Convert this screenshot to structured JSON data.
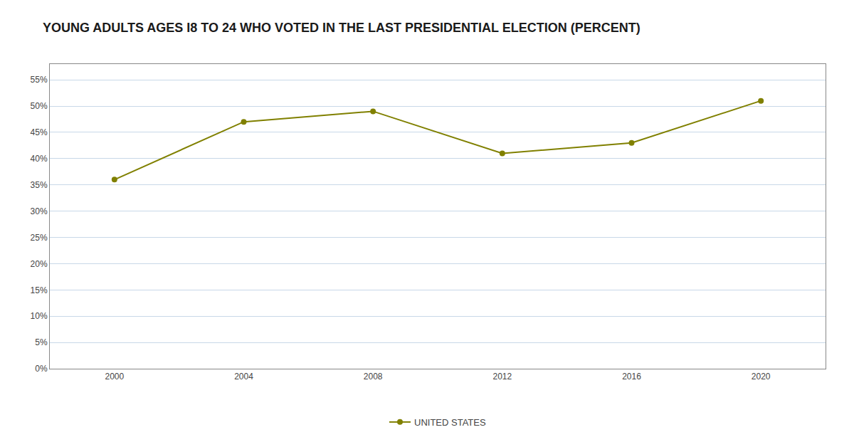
{
  "chart_data": {
    "type": "line",
    "title": "YOUNG ADULTS AGES I8 TO 24 WHO VOTED IN THE LAST PRESIDENTIAL ELECTION (PERCENT)",
    "x": [
      2000,
      2004,
      2008,
      2012,
      2016,
      2020
    ],
    "series": [
      {
        "name": "UNITED STATES",
        "color": "#808000",
        "marker": "circle",
        "values": [
          36,
          47,
          49,
          41,
          43,
          51
        ]
      }
    ],
    "xlim": [
      1998,
      2022
    ],
    "xticks": [
      2000,
      2004,
      2008,
      2012,
      2016,
      2020
    ],
    "ylim": [
      0,
      58
    ],
    "yticks": [
      {
        "value": 0,
        "label": "0%"
      },
      {
        "value": 5,
        "label": "5%"
      },
      {
        "value": 10,
        "label": "10%"
      },
      {
        "value": 15,
        "label": "15%"
      },
      {
        "value": 20,
        "label": "20%"
      },
      {
        "value": 25,
        "label": "25%"
      },
      {
        "value": 30,
        "label": "30%"
      },
      {
        "value": 35,
        "label": "35%"
      },
      {
        "value": 40,
        "label": "40%"
      },
      {
        "value": 45,
        "label": "45%"
      },
      {
        "value": 50,
        "label": "50%"
      },
      {
        "value": 55,
        "label": "55%"
      }
    ],
    "grid": true,
    "legend": "bottom"
  }
}
